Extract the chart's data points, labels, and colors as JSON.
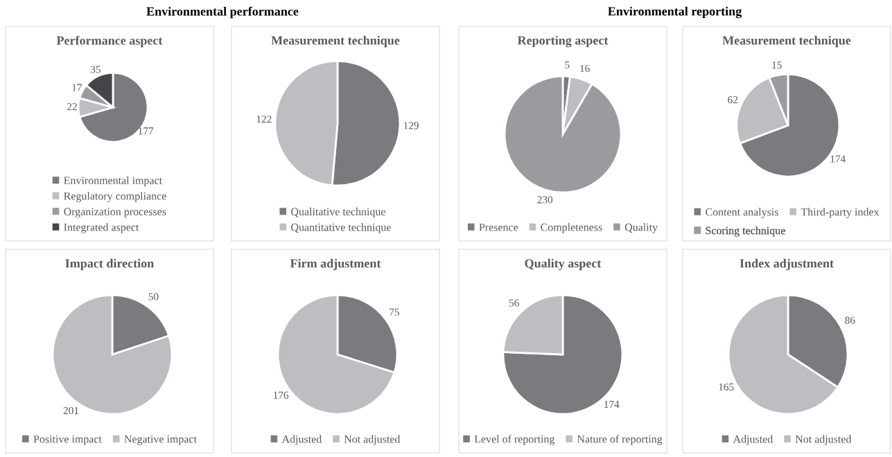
{
  "chart_data": [
    {
      "type": "pie",
      "title": "Performance aspect",
      "annotations": [
        "Environmental performance"
      ],
      "categories": [
        "Environmental impact",
        "Regulatory compliance",
        "Organization processes",
        "Integrated aspect"
      ],
      "values": [
        177,
        22,
        17,
        35
      ],
      "colors": [
        "#7a7b7f",
        "#bdbec2",
        "#9a9b9f",
        "#444548"
      ],
      "data_labels": true,
      "legend": "bottom"
    },
    {
      "type": "pie",
      "title": "Measurement technique",
      "categories": [
        "Qualitative technique",
        "Quantitative technique"
      ],
      "values": [
        129,
        122
      ],
      "colors": [
        "#7a7b7f",
        "#bdbec2"
      ],
      "data_labels": true,
      "legend": "bottom"
    },
    {
      "type": "pie",
      "title": "Reporting aspect",
      "annotations": [
        "Environmental reporting"
      ],
      "categories": [
        "Presence",
        "Completeness",
        "Quality"
      ],
      "values": [
        5,
        16,
        230
      ],
      "colors": [
        "#7a7b7f",
        "#bdbec2",
        "#9a9b9f"
      ],
      "data_labels": true,
      "legend": "bottom"
    },
    {
      "type": "pie",
      "title": "Measurement technique",
      "categories": [
        "Content analysis",
        "Third-party index",
        "Scoring technique"
      ],
      "values": [
        174,
        62,
        15
      ],
      "colors": [
        "#7a7b7f",
        "#bdbec2",
        "#9a9b9f"
      ],
      "data_labels": true,
      "legend": "bottom"
    },
    {
      "type": "pie",
      "title": "Impact direction",
      "categories": [
        "Positive impact",
        "Negative impact"
      ],
      "values": [
        50,
        201
      ],
      "colors": [
        "#7a7b7f",
        "#bdbec2"
      ],
      "data_labels": true,
      "legend": "bottom"
    },
    {
      "type": "pie",
      "title": "Firm adjustment",
      "categories": [
        "Adjusted",
        "Not adjusted"
      ],
      "values": [
        75,
        176
      ],
      "colors": [
        "#7a7b7f",
        "#bdbec2"
      ],
      "data_labels": true,
      "legend": "bottom"
    },
    {
      "type": "pie",
      "title": "Quality aspect",
      "categories": [
        "Level of reporting",
        "Nature of reporting"
      ],
      "values": [
        174,
        56
      ],
      "colors": [
        "#7a7b7f",
        "#bdbec2"
      ],
      "data_labels": true,
      "legend": "bottom"
    },
    {
      "type": "pie",
      "title": "Index adjustment",
      "categories": [
        "Adjusted",
        "Not adjusted"
      ],
      "values": [
        86,
        165
      ],
      "colors": [
        "#7a7b7f",
        "#bdbec2"
      ],
      "data_labels": true,
      "legend": "bottom"
    }
  ]
}
